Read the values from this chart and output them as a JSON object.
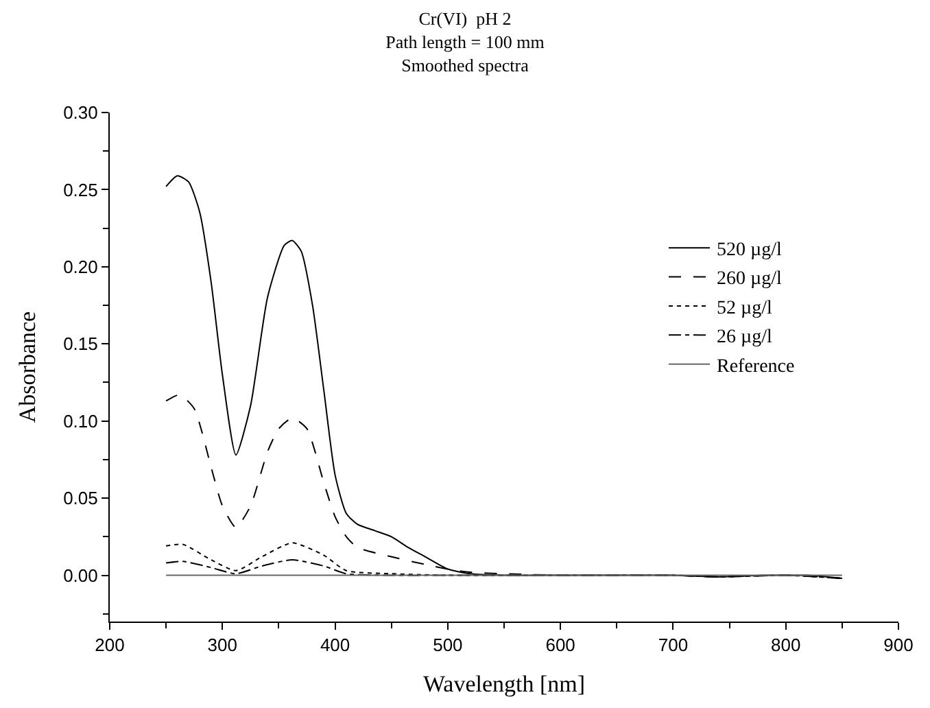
{
  "chart_data": {
    "type": "line",
    "title": "Cr(VI)  pH 2\nPath length = 100 mm\nSmoothed spectra",
    "xlabel": "Wavelength [nm]",
    "ylabel": "Absorbance",
    "xlim": [
      200,
      900
    ],
    "xticks": [
      200,
      300,
      400,
      500,
      600,
      700,
      800,
      900
    ],
    "ylim": [
      -0.03,
      0.3
    ],
    "yticks": [
      {
        "value": 0,
        "label": "0.00"
      },
      {
        "value": 0.05,
        "label": "0.05"
      },
      {
        "value": 0.1,
        "label": "0.10"
      },
      {
        "value": 0.15,
        "label": "0.15"
      },
      {
        "value": 0.2,
        "label": "0.20"
      },
      {
        "value": 0.25,
        "label": "0.25"
      },
      {
        "value": 0.3,
        "label": "0.30"
      }
    ],
    "legend": "right",
    "marker": "none",
    "series": [
      {
        "name": "520 µg/l",
        "color": "#000000",
        "line_style": "solid",
        "x": [
          250,
          260,
          270,
          280,
          290,
          300,
          312,
          325,
          340,
          355,
          362,
          370,
          380,
          390,
          400,
          410,
          420,
          435,
          450,
          465,
          480,
          500,
          520,
          550,
          600,
          650,
          700,
          740,
          780,
          800,
          820,
          850
        ],
        "values": [
          0.252,
          0.259,
          0.255,
          0.235,
          0.19,
          0.13,
          0.078,
          0.11,
          0.18,
          0.214,
          0.217,
          0.21,
          0.175,
          0.12,
          0.065,
          0.04,
          0.033,
          0.029,
          0.025,
          0.018,
          0.012,
          0.004,
          0.001,
          0.0,
          0.0,
          0.0,
          0.0,
          -0.001,
          0.0,
          0.0,
          0.0,
          -0.002
        ]
      },
      {
        "name": "260 µg/l",
        "color": "#000000",
        "line_style": "dashed",
        "x": [
          250,
          262,
          275,
          290,
          300,
          312,
          325,
          340,
          350,
          362,
          375,
          390,
          400,
          410,
          420,
          450,
          480,
          500,
          520,
          550,
          600,
          700,
          740,
          800,
          850
        ],
        "values": [
          0.113,
          0.117,
          0.108,
          0.07,
          0.045,
          0.031,
          0.045,
          0.08,
          0.095,
          0.102,
          0.095,
          0.06,
          0.038,
          0.025,
          0.018,
          0.012,
          0.007,
          0.004,
          0.002,
          0.001,
          0.0,
          0.0,
          -0.001,
          0.0,
          -0.002
        ]
      },
      {
        "name": "52 µg/l",
        "color": "#000000",
        "line_style": "dotted",
        "x": [
          250,
          265,
          290,
          312,
          335,
          362,
          390,
          410,
          450,
          500,
          600,
          700,
          740,
          800,
          850
        ],
        "values": [
          0.019,
          0.02,
          0.01,
          0.003,
          0.012,
          0.021,
          0.013,
          0.003,
          0.001,
          0.0,
          0.0,
          0.0,
          -0.001,
          0.0,
          -0.002
        ]
      },
      {
        "name": "26 µg/l",
        "color": "#000000",
        "line_style": "dashdot",
        "x": [
          250,
          265,
          290,
          312,
          335,
          362,
          390,
          410,
          450,
          500,
          600,
          700,
          740,
          800,
          850
        ],
        "values": [
          0.008,
          0.009,
          0.005,
          0.001,
          0.006,
          0.01,
          0.006,
          0.001,
          0.0,
          0.0,
          0.0,
          0.0,
          -0.001,
          0.0,
          -0.002
        ]
      },
      {
        "name": "Reference",
        "color": "#666666",
        "line_style": "solid",
        "x": [
          250,
          400,
          550,
          700,
          850
        ],
        "values": [
          0.0,
          0.0,
          0.0,
          0.0,
          0.0
        ]
      }
    ]
  }
}
